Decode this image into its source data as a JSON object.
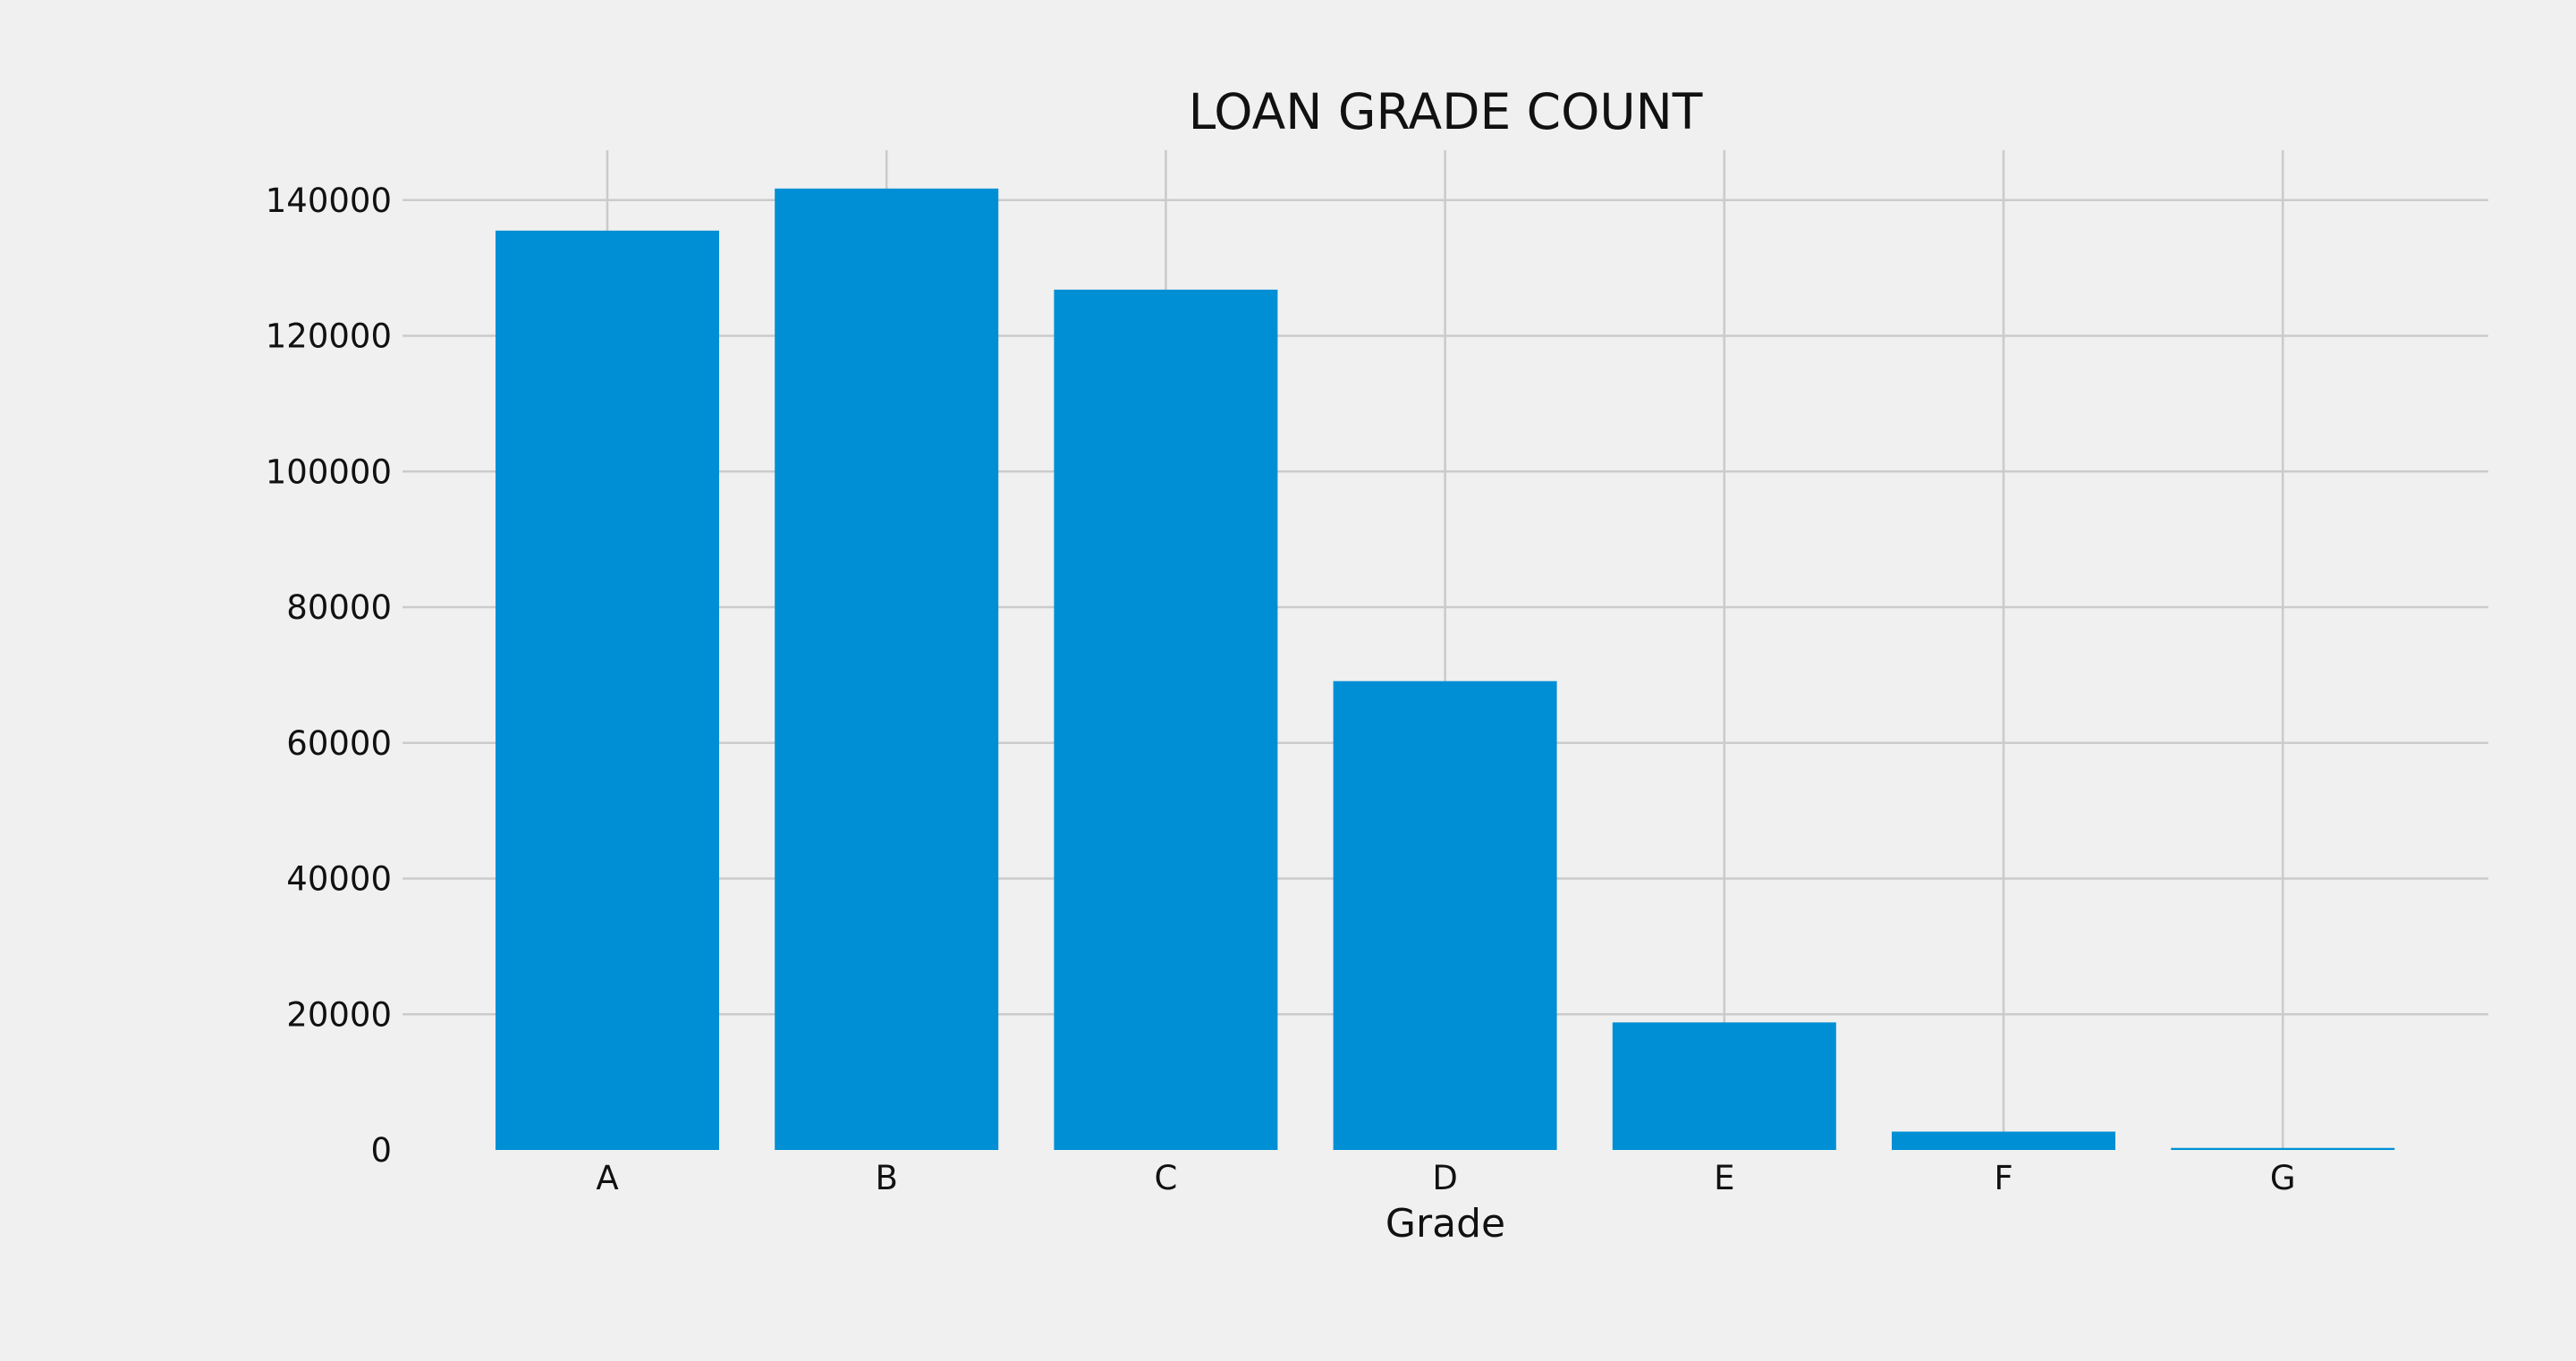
{
  "chart_data": {
    "type": "bar",
    "title": "LOAN GRADE COUNT",
    "xlabel": "Grade",
    "ylabel": "",
    "categories": [
      "A",
      "B",
      "C",
      "D",
      "E",
      "F",
      "G"
    ],
    "values": [
      135500,
      141700,
      126800,
      69100,
      18800,
      2700,
      300
    ],
    "ylim": [
      0,
      148000
    ],
    "yticks": [
      0,
      20000,
      40000,
      60000,
      80000,
      100000,
      120000,
      140000
    ],
    "ytick_labels": [
      "0",
      "20000",
      "40000",
      "60000",
      "80000",
      "100000",
      "120000",
      "140000"
    ],
    "grid": true,
    "bar_color": "#008fd5",
    "background_color": "#f0f0f0",
    "grid_color": "#cbcbcb"
  }
}
